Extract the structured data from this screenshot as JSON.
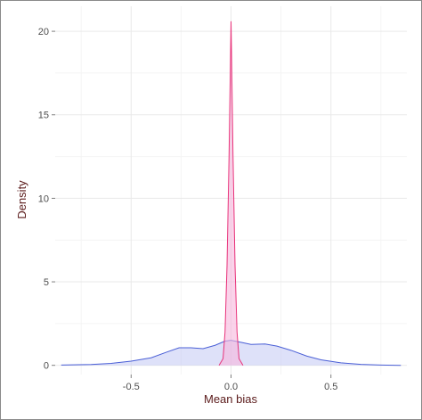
{
  "chart_data": {
    "type": "area",
    "xlabel": "Mean bias",
    "ylabel": "Density",
    "xlim": [
      -0.88,
      0.88
    ],
    "ylim": [
      -0.55,
      21.5
    ],
    "x_ticks": [
      -0.5,
      0.0,
      0.5
    ],
    "x_tick_labels": [
      "-0.5",
      "0.0",
      "0.5"
    ],
    "y_ticks": [
      0,
      5,
      10,
      15,
      20
    ],
    "y_tick_labels": [
      "0",
      "5",
      "10",
      "15",
      "20"
    ],
    "grid": true,
    "series": [
      {
        "color": "#4a5fd6",
        "fill": "#c8cdf5",
        "points": [
          [
            -0.85,
            0.02
          ],
          [
            -0.7,
            0.05
          ],
          [
            -0.6,
            0.12
          ],
          [
            -0.5,
            0.25
          ],
          [
            -0.4,
            0.45
          ],
          [
            -0.32,
            0.8
          ],
          [
            -0.26,
            1.05
          ],
          [
            -0.2,
            1.05
          ],
          [
            -0.14,
            1.0
          ],
          [
            -0.08,
            1.2
          ],
          [
            -0.03,
            1.45
          ],
          [
            0.0,
            1.5
          ],
          [
            0.05,
            1.38
          ],
          [
            0.1,
            1.25
          ],
          [
            0.17,
            1.28
          ],
          [
            0.23,
            1.15
          ],
          [
            0.3,
            0.9
          ],
          [
            0.38,
            0.55
          ],
          [
            0.45,
            0.33
          ],
          [
            0.55,
            0.15
          ],
          [
            0.65,
            0.06
          ],
          [
            0.75,
            0.02
          ],
          [
            0.85,
            0.0
          ]
        ]
      },
      {
        "color": "#e8337a",
        "fill": "#f7b5dc",
        "points": [
          [
            -0.06,
            0.0
          ],
          [
            -0.04,
            0.4
          ],
          [
            -0.03,
            2.0
          ],
          [
            -0.02,
            6.0
          ],
          [
            -0.01,
            12.5
          ],
          [
            0.0,
            20.6
          ],
          [
            0.01,
            12.5
          ],
          [
            0.02,
            6.0
          ],
          [
            0.03,
            2.0
          ],
          [
            0.04,
            0.4
          ],
          [
            0.06,
            0.0
          ]
        ]
      }
    ]
  }
}
